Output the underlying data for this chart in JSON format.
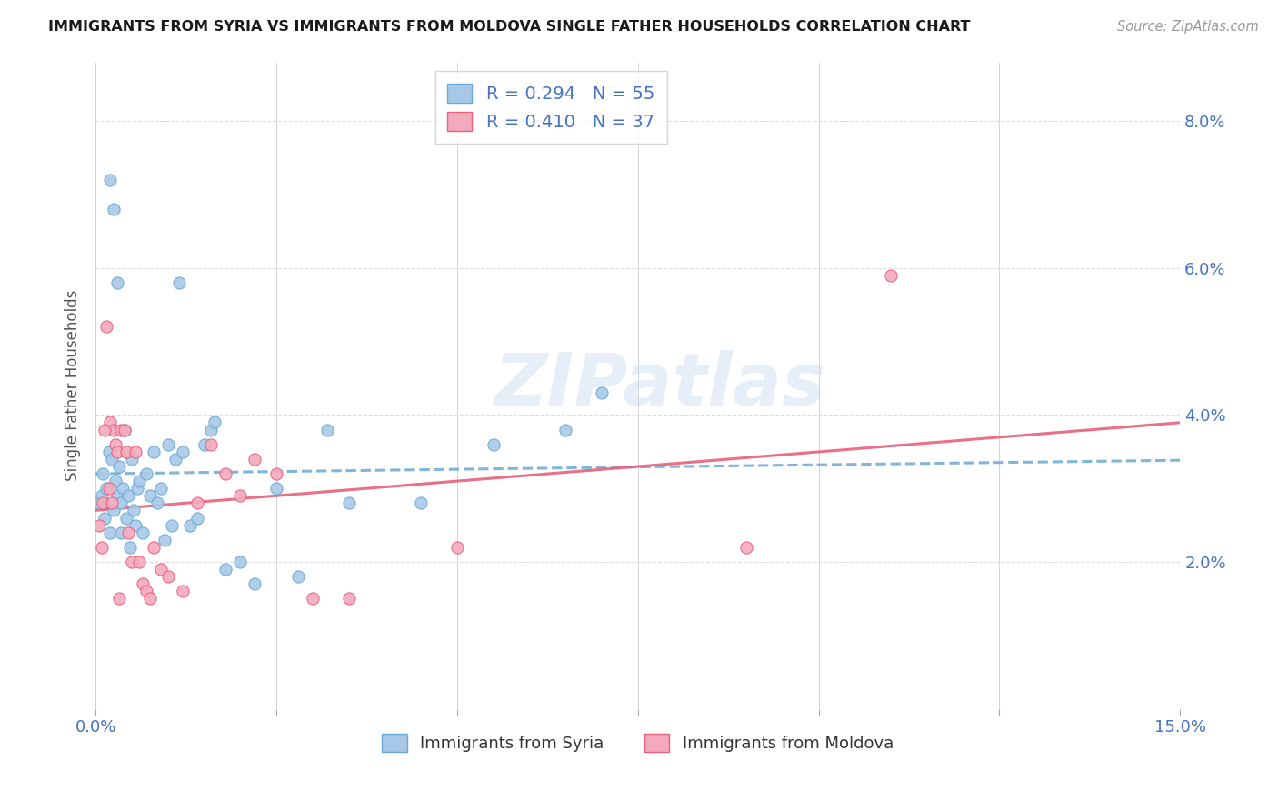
{
  "title": "IMMIGRANTS FROM SYRIA VS IMMIGRANTS FROM MOLDOVA SINGLE FATHER HOUSEHOLDS CORRELATION CHART",
  "source": "Source: ZipAtlas.com",
  "ylabel": "Single Father Households",
  "xlim": [
    0.0,
    15.0
  ],
  "ylim": [
    0.0,
    8.8
  ],
  "ytick_labels": [
    "2.0%",
    "4.0%",
    "6.0%",
    "8.0%"
  ],
  "ytick_values": [
    2.0,
    4.0,
    6.0,
    8.0
  ],
  "xtick_values": [
    0.0,
    2.5,
    5.0,
    7.5,
    10.0,
    12.5,
    15.0
  ],
  "syria_color": "#a8c8e8",
  "moldova_color": "#f4aabe",
  "syria_edge_color": "#6aaad4",
  "moldova_edge_color": "#e8607a",
  "syria_line_color": "#6aaad4",
  "moldova_line_color": "#e8607a",
  "legend_color": "#4472c4",
  "legend_r1": "R = 0.294",
  "legend_n1": "N = 55",
  "legend_r2": "R = 0.410",
  "legend_n2": "N = 37",
  "watermark": "ZIPatlas",
  "background_color": "#ffffff",
  "grid_color": "#dddddd",
  "syria_scatter_x": [
    0.05,
    0.08,
    0.1,
    0.12,
    0.15,
    0.18,
    0.2,
    0.22,
    0.25,
    0.28,
    0.3,
    0.32,
    0.35,
    0.38,
    0.4,
    0.42,
    0.45,
    0.48,
    0.5,
    0.52,
    0.55,
    0.58,
    0.6,
    0.65,
    0.7,
    0.75,
    0.8,
    0.85,
    0.9,
    0.95,
    1.0,
    1.05,
    1.1,
    1.15,
    1.2,
    1.3,
    1.4,
    1.5,
    1.6,
    1.65,
    1.8,
    2.0,
    2.2,
    2.5,
    2.8,
    3.2,
    3.5,
    4.5,
    5.5,
    6.5,
    7.0,
    0.2,
    0.25,
    0.3,
    0.35
  ],
  "syria_scatter_y": [
    2.8,
    2.9,
    3.2,
    2.6,
    3.0,
    3.5,
    2.4,
    3.4,
    2.7,
    3.1,
    2.9,
    3.3,
    2.8,
    3.0,
    3.8,
    2.6,
    2.9,
    2.2,
    3.4,
    2.7,
    2.5,
    3.0,
    3.1,
    2.4,
    3.2,
    2.9,
    3.5,
    2.8,
    3.0,
    2.3,
    3.6,
    2.5,
    3.4,
    5.8,
    3.5,
    2.5,
    2.6,
    3.6,
    3.8,
    3.9,
    1.9,
    2.0,
    1.7,
    3.0,
    1.8,
    3.8,
    2.8,
    2.8,
    3.6,
    3.8,
    4.3,
    7.2,
    6.8,
    5.8,
    2.4
  ],
  "moldova_scatter_x": [
    0.05,
    0.08,
    0.1,
    0.15,
    0.18,
    0.2,
    0.25,
    0.28,
    0.3,
    0.35,
    0.4,
    0.42,
    0.45,
    0.5,
    0.55,
    0.6,
    0.65,
    0.7,
    0.75,
    0.8,
    0.9,
    1.0,
    1.2,
    1.4,
    1.6,
    1.8,
    2.0,
    2.2,
    2.5,
    3.0,
    3.5,
    5.0,
    9.0,
    11.0,
    0.12,
    0.22,
    0.32
  ],
  "moldova_scatter_y": [
    2.5,
    2.2,
    2.8,
    5.2,
    3.0,
    3.9,
    3.8,
    3.6,
    3.5,
    3.8,
    3.8,
    3.5,
    2.4,
    2.0,
    3.5,
    2.0,
    1.7,
    1.6,
    1.5,
    2.2,
    1.9,
    1.8,
    1.6,
    2.8,
    3.6,
    3.2,
    2.9,
    3.4,
    3.2,
    1.5,
    1.5,
    2.2,
    2.2,
    5.9,
    3.8,
    2.8,
    1.5
  ]
}
